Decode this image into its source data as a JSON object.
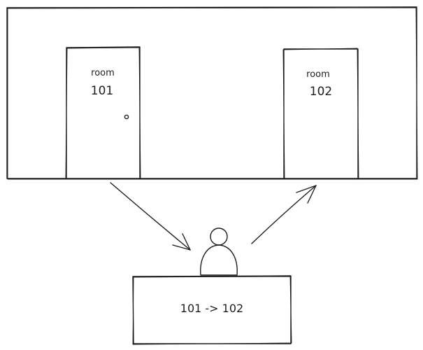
{
  "doors": [
    {
      "word": "room",
      "number": "101"
    },
    {
      "word": "room",
      "number": "102"
    }
  ],
  "desk": {
    "text": "101 -> 102"
  },
  "colors": {
    "ink": "#1e1e1e",
    "background": "#ffffff"
  }
}
